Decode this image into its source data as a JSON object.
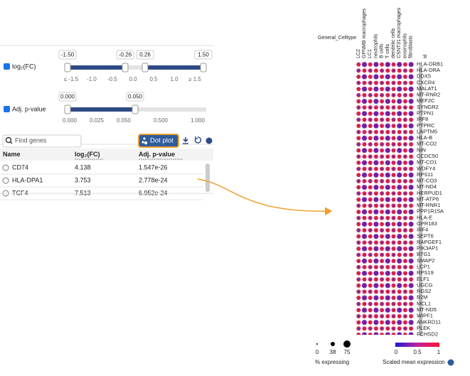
{
  "filters": {
    "log2fc": {
      "label": "log₂(FC)",
      "handles": [
        "-1.50",
        "-0.26",
        "0.26",
        "1.50"
      ],
      "ticks": [
        "≤ -1.5",
        "-1.0",
        "-0.5",
        "0.0",
        "0.5",
        "1.0",
        "≥ 1.5"
      ]
    },
    "pvalue": {
      "label": "Adj. p-value",
      "handles": [
        "0.000",
        "0.050"
      ],
      "ticks": [
        "0.000",
        "0.025",
        "0.050",
        "0.500",
        "1.000"
      ]
    }
  },
  "search": {
    "placeholder": "Find genes",
    "button": "Dot plot"
  },
  "table": {
    "columns": [
      "Name",
      "log₂(FC)",
      "Adj. p-value"
    ],
    "rows": [
      [
        "CD74",
        "4.138",
        "1.547e-26"
      ],
      [
        "HLA-DPA1",
        "3.753",
        "2.778e-24"
      ],
      [
        "TCF4",
        "7.513",
        "6.952e-24"
      ]
    ]
  },
  "dot_plot": {
    "group_label": "General_Celltype",
    "columns": [
      "LC2",
      "GPNMB macrophages",
      "LC1",
      "neutrophils",
      "B cells",
      "T cells",
      "dendritic cells",
      "CSNT31 macrophages",
      "eosinophils",
      "fibroblasts"
    ],
    "id_label": "id",
    "genes": [
      "HLA-DRB1",
      "HLA-DRA",
      "DDX5",
      "CXCR4",
      "MALAT1",
      "MT-RNR2",
      "MEF2C",
      "SYNGR2",
      "PTPN1",
      "IRF8",
      "PTPRC",
      "LAPTM5",
      "HLA-B",
      "MT-CO2",
      "NIN",
      "CCDC50",
      "MT-CO1",
      "WDFY4",
      "RPS11",
      "MT-CO3",
      "MT-ND4",
      "HERPUD1",
      "MT-ATP6",
      "MT-RNR1",
      "PPP1R15A",
      "HLA-E",
      "GPR183",
      "IRF4",
      "SEPT6",
      "RAPGEF1",
      "PIK3AP1",
      "BTG1",
      "SMAP2",
      "LCP1",
      "RPS19",
      "ELF1",
      "UGCG",
      "RGS2",
      "B2M",
      "MCL1",
      "MT-ND5",
      "WIPF1",
      "ANKRD11",
      "PLEK",
      "FCHSD2"
    ]
  },
  "legend": {
    "size_ticks": [
      "0",
      "38",
      "75"
    ],
    "size_title": "% expressing",
    "color_ticks": [
      "0",
      "0.5",
      "1"
    ],
    "color_title": "Scaled mean expression"
  }
}
